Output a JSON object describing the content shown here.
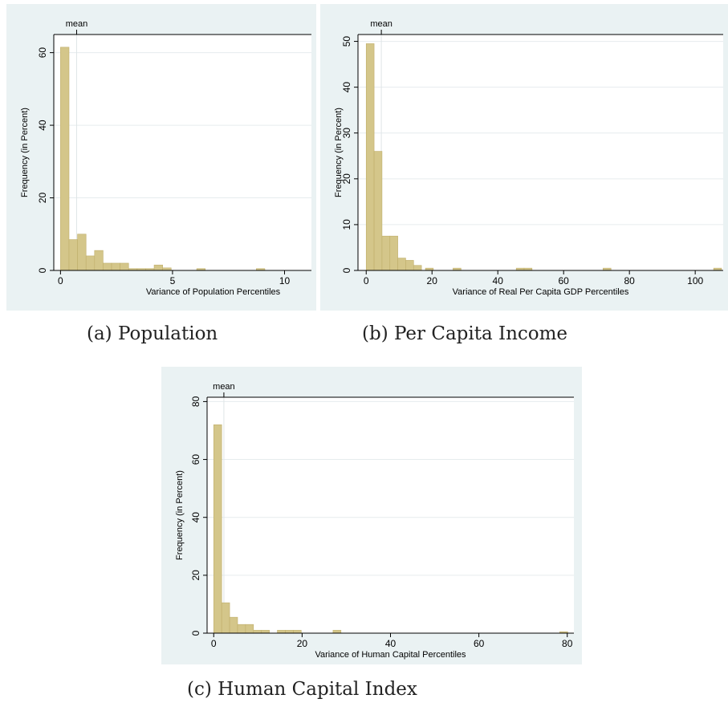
{
  "colors": {
    "panel_bg": "#eaf2f3",
    "bar_fill": "#d4c68a",
    "bar_stroke": "#bfae6a",
    "grid": "#e6ecee",
    "axis": "#000000"
  },
  "captions": {
    "a": "(a) Population",
    "b": "(b) Per Capita Income",
    "c": "(c) Human Capital Index"
  },
  "chart_data": [
    {
      "id": "a",
      "type": "bar",
      "title": "",
      "xlabel": "Variance of Population Percentiles",
      "ylabel": "Frequency (in Percent)",
      "xlim": [
        -0.3,
        11.2
      ],
      "ylim": [
        0,
        65
      ],
      "xticks": [
        0,
        5,
        10
      ],
      "yticks": [
        0,
        20,
        40,
        60
      ],
      "mean_label": "mean",
      "mean_x": 0.72,
      "bin_width": 0.38,
      "x": [
        0.0,
        0.38,
        0.76,
        1.14,
        1.52,
        1.9,
        2.28,
        2.66,
        3.04,
        3.42,
        3.8,
        4.18,
        4.56,
        5.32,
        6.08,
        8.74
      ],
      "values": [
        61.5,
        8.5,
        10,
        4,
        5.5,
        2,
        2,
        2,
        0.5,
        0.5,
        0.5,
        1.5,
        0.7,
        0,
        0.5,
        0.5
      ]
    },
    {
      "id": "b",
      "type": "bar",
      "title": "",
      "xlabel": "Variance of Real Per Capita GDP Percentiles",
      "ylabel": "Frequency (in Percent)",
      "xlim": [
        -2.5,
        108.5
      ],
      "ylim": [
        0,
        51.5
      ],
      "xticks": [
        0,
        20,
        40,
        60,
        80,
        100
      ],
      "yticks": [
        0,
        10,
        20,
        30,
        40,
        50
      ],
      "mean_label": "mean",
      "mean_x": 4.6,
      "bin_width": 2.4,
      "x": [
        0.0,
        2.4,
        4.8,
        7.2,
        9.6,
        12.0,
        14.4,
        18.0,
        26.4,
        45.6,
        48.0,
        72.0,
        105.6
      ],
      "values": [
        49.5,
        26,
        7.5,
        7.5,
        2.7,
        2.2,
        1.1,
        0.5,
        0.5,
        0.5,
        0.5,
        0.5,
        0.5
      ]
    },
    {
      "id": "c",
      "type": "bar",
      "title": "",
      "xlabel": "Variance of Human Capital Percentiles",
      "ylabel": "Frequency (in Percent)",
      "xlim": [
        -1.5,
        81.5
      ],
      "ylim": [
        0,
        81.5
      ],
      "xticks": [
        0,
        20,
        40,
        60,
        80
      ],
      "yticks": [
        0,
        20,
        40,
        60,
        80
      ],
      "mean_label": "mean",
      "mean_x": 2.3,
      "bin_width": 1.8,
      "x": [
        0.0,
        1.8,
        3.6,
        5.4,
        7.2,
        9.0,
        10.8,
        14.4,
        16.2,
        18.0,
        27.0,
        78.3
      ],
      "values": [
        72,
        10.5,
        5.5,
        3,
        3,
        1,
        1,
        1,
        1,
        1,
        1,
        0.5
      ]
    }
  ]
}
